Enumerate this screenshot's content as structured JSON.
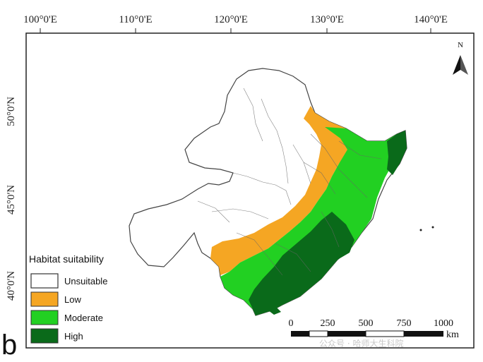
{
  "map": {
    "lon_labels": [
      "100°0'E",
      "110°0'E",
      "120°0'E",
      "130°0'E",
      "140°0'E"
    ],
    "lat_labels": [
      "50°0'N",
      "45°0'N",
      "40°0'N"
    ],
    "panel_letter": "b",
    "north_label": "N",
    "watermark": "公众号 · 哈师大生科院"
  },
  "legend": {
    "title": "Habitat suitability",
    "items": [
      {
        "label": "Unsuitable",
        "color": "#ffffff"
      },
      {
        "label": "Low",
        "color": "#f5a623"
      },
      {
        "label": "Moderate",
        "color": "#22d022"
      },
      {
        "label": "High",
        "color": "#0a6a1a"
      }
    ]
  },
  "scale_bar": {
    "ticks": [
      "0",
      "250",
      "500",
      "750",
      "1000"
    ],
    "unit": "km"
  }
}
